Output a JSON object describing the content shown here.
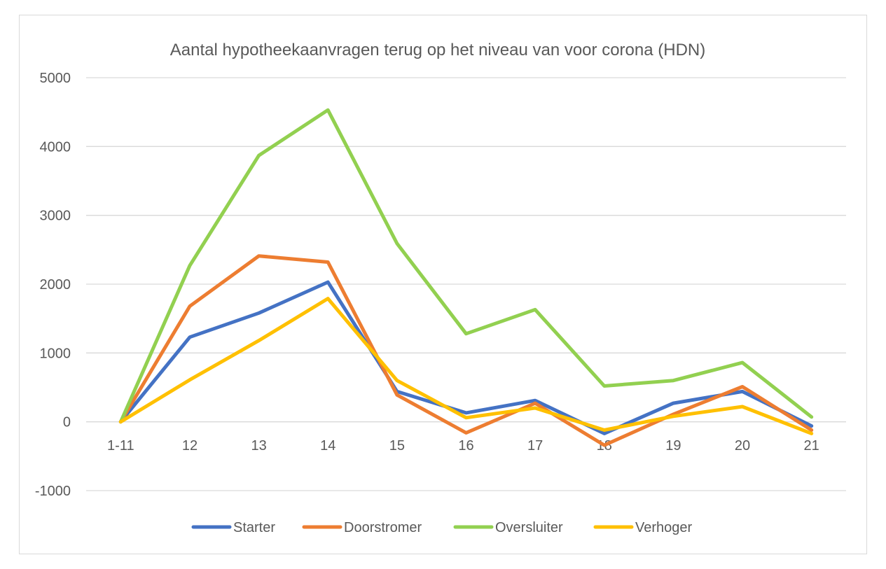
{
  "chart_data": {
    "type": "line",
    "title": "Aantal hypotheekaanvragen terug op het niveau van voor corona (HDN)",
    "xlabel": "",
    "ylabel": "",
    "categories": [
      "1-11",
      "12",
      "13",
      "14",
      "15",
      "16",
      "17",
      "18",
      "19",
      "20",
      "21"
    ],
    "ylim": [
      -1000,
      5000
    ],
    "yticks": [
      5000,
      4000,
      3000,
      2000,
      1000,
      0,
      -1000
    ],
    "grid": true,
    "legend": "bottom",
    "series": [
      {
        "name": "Starter",
        "color": "#4472c4",
        "values": [
          0,
          1230,
          1580,
          2030,
          440,
          130,
          310,
          -170,
          270,
          440,
          -60
        ]
      },
      {
        "name": "Doorstromer",
        "color": "#ed7d31",
        "values": [
          0,
          1680,
          2410,
          2320,
          390,
          -160,
          270,
          -340,
          110,
          510,
          -120
        ]
      },
      {
        "name": "Oversluiter",
        "color": "#92d050",
        "values": [
          0,
          2270,
          3870,
          4530,
          2590,
          1280,
          1630,
          520,
          600,
          860,
          70
        ]
      },
      {
        "name": "Verhoger",
        "color": "#ffc000",
        "values": [
          0,
          610,
          1180,
          1790,
          600,
          60,
          200,
          -120,
          80,
          220,
          -170
        ]
      }
    ]
  }
}
